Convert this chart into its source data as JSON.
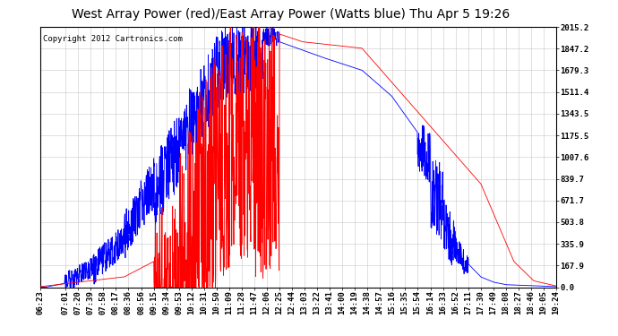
{
  "title": "West Array Power (red)/East Array Power (Watts blue) Thu Apr 5 19:26",
  "copyright": "Copyright 2012 Cartronics.com",
  "background_color": "#ffffff",
  "plot_bg_color": "#ffffff",
  "grid_color": "#c8c8c8",
  "ytick_labels": [
    "0.0",
    "167.9",
    "335.9",
    "503.8",
    "671.7",
    "839.7",
    "1007.6",
    "1175.5",
    "1343.5",
    "1511.4",
    "1679.3",
    "1847.2",
    "2015.2"
  ],
  "ytick_values": [
    0.0,
    167.9,
    335.9,
    503.8,
    671.7,
    839.7,
    1007.6,
    1175.5,
    1343.5,
    1511.4,
    1679.3,
    1847.2,
    2015.2
  ],
  "ymax": 2015.2,
  "ymin": 0.0,
  "red_color": "#ff0000",
  "blue_color": "#0000ff",
  "title_fontsize": 10,
  "copyright_fontsize": 6.5,
  "tick_fontsize": 6.5,
  "xtick_labels": [
    "06:23",
    "07:01",
    "07:20",
    "07:39",
    "07:58",
    "08:17",
    "08:36",
    "08:56",
    "09:15",
    "09:34",
    "09:53",
    "10:12",
    "10:31",
    "10:50",
    "11:09",
    "11:28",
    "11:47",
    "12:06",
    "12:25",
    "12:44",
    "13:03",
    "13:22",
    "13:41",
    "14:00",
    "14:19",
    "14:38",
    "14:57",
    "15:16",
    "15:35",
    "15:54",
    "16:14",
    "16:33",
    "16:52",
    "17:11",
    "17:30",
    "17:49",
    "18:08",
    "18:27",
    "18:46",
    "19:05",
    "19:24"
  ]
}
